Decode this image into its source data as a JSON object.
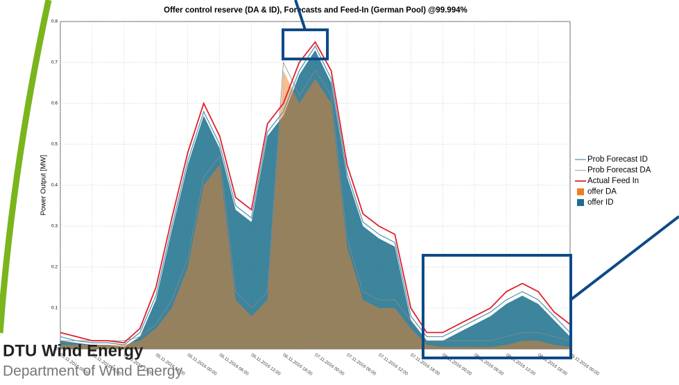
{
  "chart_data": {
    "type": "line",
    "title": "Offer control reserve (DA & ID), Forecasts and Feed-In (German Pool) @99.994%",
    "y_label": "Power Output [MW]",
    "xlim": [
      "05.11.2016 00:00",
      "09.11.2016 00:00"
    ],
    "xticks": [
      "05.11.2016 00:00",
      "05.11.2016 06:00",
      "05.11.2016 12:00",
      "05.11.2016 18:00",
      "06.11.2016 00:00",
      "06.11.2016 06:00",
      "06.11.2016 12:00",
      "06.11.2016 18:00",
      "07.11.2016 00:00",
      "07.11.2016 06:00",
      "07.11.2016 12:00",
      "07.11.2016 18:00",
      "08.11.2016 00:00",
      "08.11.2016 06:00",
      "08.11.2016 12:00",
      "08.11.2016 18:00",
      "09.11.2016 00:00"
    ],
    "ylim": [
      0,
      0.8
    ],
    "yticks": [
      0,
      0.1,
      0.2,
      0.3,
      0.4,
      0.5,
      0.6,
      0.7,
      0.8
    ],
    "grid": true,
    "x": [
      "05.11.2016 00:00",
      "05.11.2016 03:00",
      "05.11.2016 06:00",
      "05.11.2016 09:00",
      "05.11.2016 12:00",
      "05.11.2016 15:00",
      "05.11.2016 18:00",
      "05.11.2016 21:00",
      "06.11.2016 00:00",
      "06.11.2016 03:00",
      "06.11.2016 06:00",
      "06.11.2016 09:00",
      "06.11.2016 12:00",
      "06.11.2016 15:00",
      "06.11.2016 18:00",
      "06.11.2016 21:00",
      "07.11.2016 00:00",
      "07.11.2016 03:00",
      "07.11.2016 06:00",
      "07.11.2016 09:00",
      "07.11.2016 12:00",
      "07.11.2016 15:00",
      "07.11.2016 18:00",
      "07.11.2016 21:00",
      "08.11.2016 00:00",
      "08.11.2016 03:00",
      "08.11.2016 06:00",
      "08.11.2016 09:00",
      "08.11.2016 12:00",
      "08.11.2016 15:00",
      "08.11.2016 18:00",
      "08.11.2016 21:00",
      "09.11.2016 00:00"
    ],
    "series": [
      {
        "name": "Prob Forecast ID",
        "style": "line",
        "color": "#4f8fae",
        "width": 1.2,
        "values": [
          0.03,
          0.02,
          0.015,
          0.015,
          0.01,
          0.04,
          0.13,
          0.3,
          0.46,
          0.58,
          0.5,
          0.35,
          0.32,
          0.53,
          0.58,
          0.68,
          0.74,
          0.66,
          0.43,
          0.31,
          0.28,
          0.26,
          0.08,
          0.03,
          0.03,
          0.05,
          0.07,
          0.09,
          0.12,
          0.14,
          0.12,
          0.08,
          0.04
        ]
      },
      {
        "name": "Prob Forecast DA",
        "style": "line",
        "color": "#8a8a8a",
        "width": 0.8,
        "values": [
          0.02,
          0.02,
          0.02,
          0.02,
          0.02,
          0.03,
          0.06,
          0.12,
          0.22,
          0.42,
          0.47,
          0.14,
          0.1,
          0.14,
          0.7,
          0.62,
          0.68,
          0.62,
          0.27,
          0.14,
          0.12,
          0.12,
          0.07,
          0.02,
          0.02,
          0.02,
          0.02,
          0.02,
          0.03,
          0.04,
          0.04,
          0.03,
          0.02
        ]
      },
      {
        "name": "Actual Feed In",
        "style": "line",
        "color": "#e0202a",
        "width": 1.8,
        "values": [
          0.04,
          0.03,
          0.02,
          0.02,
          0.015,
          0.05,
          0.15,
          0.32,
          0.48,
          0.6,
          0.52,
          0.37,
          0.34,
          0.55,
          0.6,
          0.7,
          0.75,
          0.68,
          0.45,
          0.33,
          0.3,
          0.28,
          0.1,
          0.04,
          0.04,
          0.06,
          0.08,
          0.1,
          0.14,
          0.16,
          0.14,
          0.09,
          0.06
        ]
      },
      {
        "name": "offer DA",
        "style": "area",
        "color": "#ef7d22",
        "values": [
          0.01,
          0.01,
          0.01,
          0.01,
          0.01,
          0.02,
          0.05,
          0.1,
          0.2,
          0.4,
          0.45,
          0.12,
          0.08,
          0.12,
          0.68,
          0.6,
          0.66,
          0.6,
          0.25,
          0.12,
          0.1,
          0.1,
          0.05,
          0.01,
          0.005,
          0.005,
          0.005,
          0.005,
          0.01,
          0.02,
          0.02,
          0.01,
          0.005
        ]
      },
      {
        "name": "offer ID",
        "style": "area",
        "color": "#1b6e8c",
        "values": [
          0.02,
          0.015,
          0.01,
          0.01,
          0.005,
          0.03,
          0.12,
          0.29,
          0.45,
          0.57,
          0.49,
          0.34,
          0.31,
          0.52,
          0.57,
          0.67,
          0.73,
          0.65,
          0.42,
          0.3,
          0.27,
          0.25,
          0.07,
          0.02,
          0.02,
          0.04,
          0.06,
          0.08,
          0.11,
          0.13,
          0.11,
          0.07,
          0.03
        ]
      }
    ]
  },
  "footer": {
    "logo": "DTU Wind Energy",
    "department": "Department of Wind Energy"
  }
}
